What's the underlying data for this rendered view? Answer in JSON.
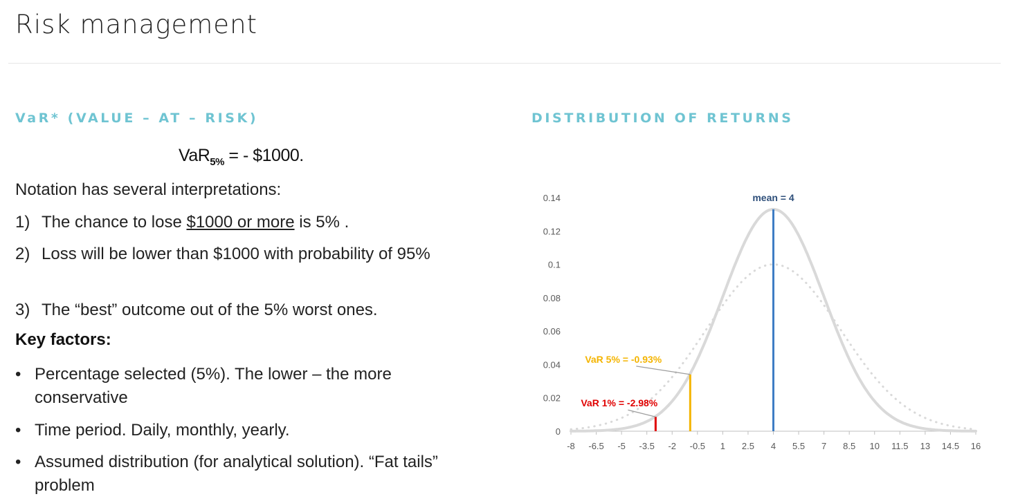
{
  "page": {
    "title": "Risk management"
  },
  "left": {
    "heading": "VaR* (VALUE – AT – RISK)",
    "formula": {
      "prefix": "VaR",
      "subscript": "5%",
      "rest": " = - $1000."
    },
    "intro": "Notation has several interpretations:",
    "interpretations": [
      {
        "marker": "1)",
        "before": "The chance to lose ",
        "underlined": "$1000 or more",
        "after": " is 5% ."
      },
      {
        "marker": "2)",
        "text": "Loss will be lower than $1000 with probability of 95%"
      },
      {
        "marker": "3)",
        "text": "The “best” outcome out of the 5% worst ones."
      }
    ],
    "key_factors_label": "Key factors:",
    "factors": [
      {
        "marker": "•",
        "text": "Percentage selected (5%). The lower – the more conservative"
      },
      {
        "marker": "•",
        "text": "Time period. Daily, monthly, yearly."
      },
      {
        "marker": "•",
        "text": "Assumed distribution (for analytical solution). “Fat tails” problem"
      }
    ]
  },
  "right": {
    "heading": "DISTRIBUTION OF RETURNS"
  },
  "chart_data": {
    "type": "line",
    "title": "",
    "xlabel": "",
    "ylabel": "",
    "x_ticks": [
      "-8",
      "-6.5",
      "-5",
      "-3.5",
      "-2",
      "-0.5",
      "1",
      "2.5",
      "4",
      "5.5",
      "7",
      "8.5",
      "10",
      "11.5",
      "13",
      "14.5",
      "16"
    ],
    "y_ticks": [
      "0",
      "0.02",
      "0.04",
      "0.06",
      "0.08",
      "0.1",
      "0.12",
      "0.14"
    ],
    "xlim": [
      -8,
      16
    ],
    "ylim": [
      0,
      0.14
    ],
    "grid": false,
    "series": [
      {
        "style": "solid",
        "color": "#d9d9d9",
        "distribution": "normal",
        "mean": 4,
        "sd": 3,
        "peak": 0.133
      },
      {
        "style": "dotted",
        "color": "#d9d9d9",
        "distribution": "normal",
        "mean": 4,
        "sd": 4,
        "peak": 0.1
      }
    ],
    "markers": [
      {
        "label": "mean = 4",
        "x": 4,
        "y": 0.133,
        "color": "#3e7dc4",
        "label_color": "#2e4f7a"
      },
      {
        "label": "VaR 5% = -0.93%",
        "x": -0.93,
        "y": 0.034,
        "color": "#f4b400",
        "label_color": "#f4b400"
      },
      {
        "label": "VaR 1% = -2.98%",
        "x": -2.98,
        "y": 0.0086,
        "color": "#e00000",
        "label_color": "#e00000"
      }
    ],
    "colors": {
      "axis": "#bfbfbf",
      "tick_label": "#595959"
    }
  }
}
